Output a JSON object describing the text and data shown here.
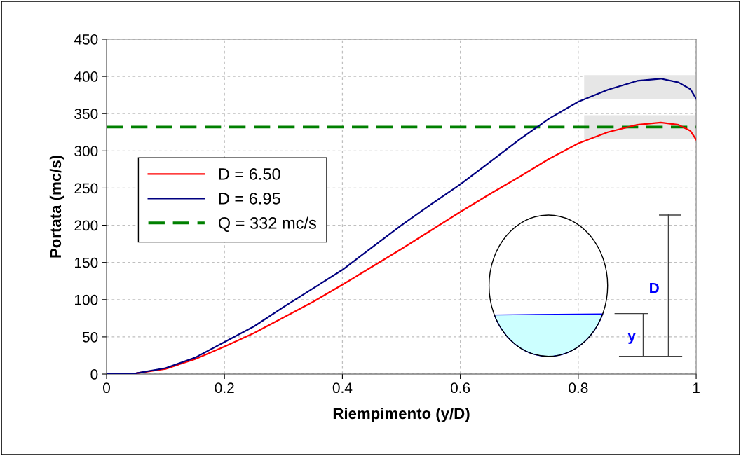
{
  "chart_data": {
    "type": "line",
    "xlabel": "Riempimento (y/D)",
    "ylabel": "Portata (mc/s)",
    "x": [
      0,
      0.05,
      0.1,
      0.15,
      0.2,
      0.25,
      0.3,
      0.35,
      0.4,
      0.45,
      0.5,
      0.55,
      0.6,
      0.65,
      0.7,
      0.75,
      0.8,
      0.85,
      0.9,
      0.94,
      0.97,
      0.99,
      1.0
    ],
    "series": [
      {
        "name": "D = 6.50",
        "color": "#ff0000",
        "values": [
          0,
          1,
          7,
          20,
          37,
          55,
          76,
          97,
          120,
          144,
          168,
          193,
          218,
          242,
          265,
          289,
          310,
          325,
          335,
          338,
          335,
          327,
          315
        ]
      },
      {
        "name": "D = 6.95",
        "color": "#000080",
        "values": [
          0,
          1,
          8,
          22,
          43,
          64,
          90,
          115,
          140,
          170,
          200,
          228,
          255,
          285,
          315,
          343,
          366,
          382,
          394,
          397,
          392,
          383,
          370
        ]
      }
    ],
    "ref_lines": [
      {
        "axis": "y",
        "value": 332,
        "label": "Q = 332 mc/s",
        "color": "#008000",
        "line_style": "dashed"
      }
    ],
    "annotations": [
      "D",
      "y"
    ],
    "xlim": [
      0,
      1
    ],
    "xticks": [
      0,
      0.2,
      0.4,
      0.6,
      0.8,
      1
    ],
    "ylim": [
      0,
      450
    ],
    "yticks": [
      0,
      50,
      100,
      150,
      200,
      250,
      300,
      350,
      400,
      450
    ],
    "grid": true,
    "legend": "left",
    "marker": "none",
    "line_style": "solid"
  }
}
